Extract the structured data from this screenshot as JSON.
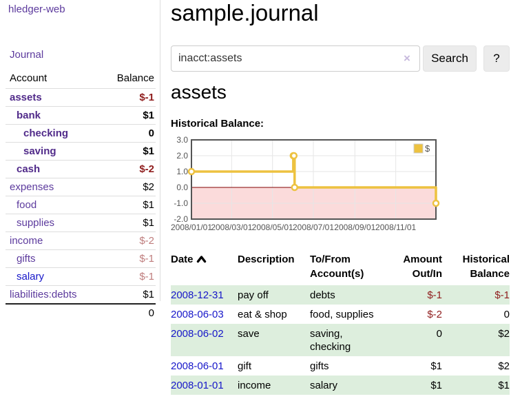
{
  "app": {
    "brand": "hledger-web"
  },
  "sidebar": {
    "journal_link": "Journal",
    "table_header": {
      "account": "Account",
      "balance": "Balance"
    },
    "accounts": [
      {
        "name": "assets",
        "balance": "$-1",
        "level": 0,
        "selected": true,
        "balance_tone": "negative",
        "link_tone": "purple"
      },
      {
        "name": "bank",
        "balance": "$1",
        "level": 1,
        "selected": true,
        "balance_tone": "normal",
        "link_tone": "purple"
      },
      {
        "name": "checking",
        "balance": "0",
        "level": 2,
        "selected": true,
        "balance_tone": "normal",
        "link_tone": "purple"
      },
      {
        "name": "saving",
        "balance": "$1",
        "level": 2,
        "selected": true,
        "balance_tone": "normal",
        "link_tone": "purple"
      },
      {
        "name": "cash",
        "balance": "$-2",
        "level": 1,
        "selected": true,
        "balance_tone": "negative",
        "link_tone": "purple"
      },
      {
        "name": "expenses",
        "balance": "$2",
        "level": 0,
        "selected": false,
        "balance_tone": "normal",
        "link_tone": "purple"
      },
      {
        "name": "food",
        "balance": "$1",
        "level": 1,
        "selected": false,
        "balance_tone": "normal",
        "link_tone": "purple"
      },
      {
        "name": "supplies",
        "balance": "$1",
        "level": 1,
        "selected": false,
        "balance_tone": "normal",
        "link_tone": "purple"
      },
      {
        "name": "income",
        "balance": "$-2",
        "level": 0,
        "selected": false,
        "balance_tone": "muted-negative",
        "link_tone": "purple"
      },
      {
        "name": "gifts",
        "balance": "$-1",
        "level": 1,
        "selected": false,
        "balance_tone": "muted-negative",
        "link_tone": "purple"
      },
      {
        "name": "salary",
        "balance": "$-1",
        "level": 1,
        "selected": false,
        "balance_tone": "muted-negative",
        "link_tone": "blue"
      },
      {
        "name": "liabilities:debts",
        "balance": "$1",
        "level": 0,
        "selected": false,
        "balance_tone": "normal",
        "link_tone": "purple"
      }
    ],
    "total": "0"
  },
  "main": {
    "title": "sample.journal",
    "search": {
      "value": "inacct:assets",
      "clear_icon": "×",
      "search_button": "Search",
      "help_button": "?"
    },
    "account_heading": "assets",
    "chart_title": "Historical Balance:"
  },
  "register": {
    "headers": {
      "date": "Date",
      "description": "Description",
      "tofrom": "To/From Account(s)",
      "amount": "Amount Out/In",
      "balance": "Historical Balance"
    },
    "rows": [
      {
        "date": "2008-12-31",
        "description": "pay off",
        "accounts": "debts",
        "amount": "$-1",
        "amount_tone": "negative",
        "balance": "$-1",
        "balance_tone": "negative"
      },
      {
        "date": "2008-06-03",
        "description": "eat & shop",
        "accounts": "food, supplies",
        "amount": "$-2",
        "amount_tone": "negative",
        "balance": "0",
        "balance_tone": "normal"
      },
      {
        "date": "2008-06-02",
        "description": "save",
        "accounts": "saving,\nchecking",
        "amount": "0",
        "amount_tone": "normal",
        "balance": "$2",
        "balance_tone": "normal"
      },
      {
        "date": "2008-06-01",
        "description": "gift",
        "accounts": "gifts",
        "amount": "$1",
        "amount_tone": "normal",
        "balance": "$2",
        "balance_tone": "normal"
      },
      {
        "date": "2008-01-01",
        "description": "income",
        "accounts": "salary",
        "amount": "$1",
        "amount_tone": "normal",
        "balance": "$1",
        "balance_tone": "normal"
      }
    ]
  },
  "chart_data": {
    "type": "line",
    "title": "Historical Balance",
    "series": [
      {
        "name": "$",
        "color": "#edc240",
        "step": true,
        "points": [
          [
            "2008-01-01",
            1
          ],
          [
            "2008-06-01",
            2
          ],
          [
            "2008-06-02",
            2
          ],
          [
            "2008-06-03",
            0
          ],
          [
            "2008-12-31",
            -1
          ]
        ]
      }
    ],
    "x_range": [
      "2008-01-01",
      "2008-12-31"
    ],
    "x_tick_labels": [
      "2008/01/01",
      "2008/03/01",
      "2008/05/01",
      "2008/07/01",
      "2008/09/01",
      "2008/11/01"
    ],
    "y_ticks": [
      "3.0",
      "2.0",
      "1.0",
      "0.0",
      "-1.0",
      "-2.0"
    ],
    "ylim": [
      -2,
      3
    ],
    "legend": {
      "label": "$",
      "position": "top-right"
    },
    "grid": true,
    "negative_region": true,
    "colors": {
      "grid": "#e6e6e6",
      "border": "#545454",
      "tick_label": "#545454",
      "zero_line": "#800000",
      "negative_fill": "#fbdbdb",
      "legend_box_border": "#cccccc"
    }
  }
}
